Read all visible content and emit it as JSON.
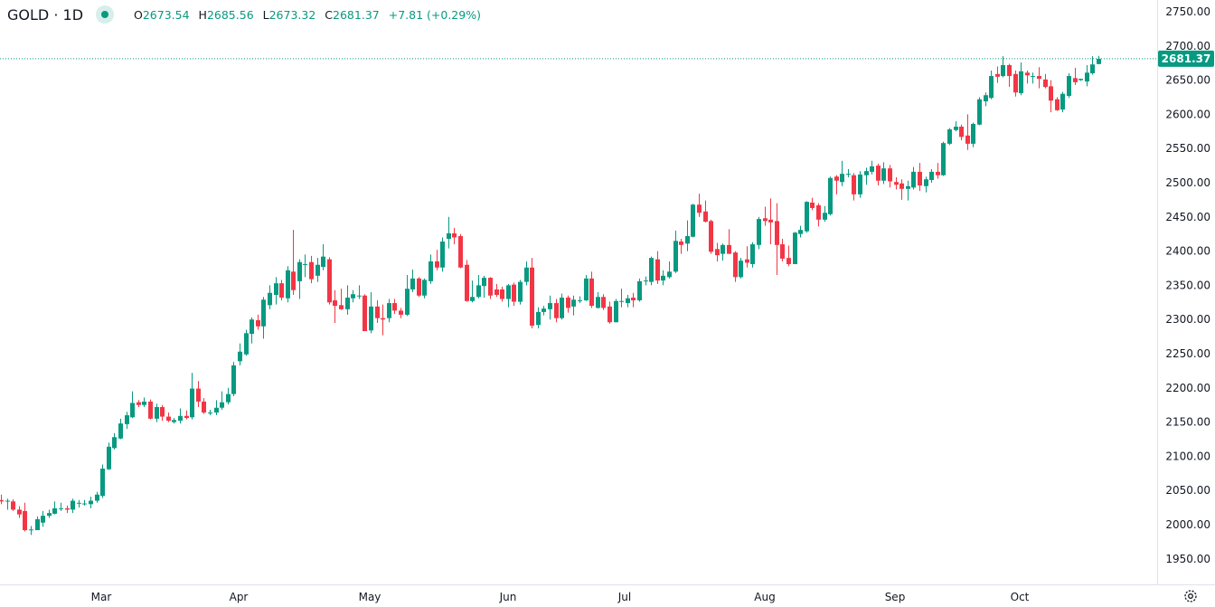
{
  "header": {
    "symbol": "GOLD",
    "separator": "·",
    "interval": "1D",
    "open_label": "O",
    "open": "2673.54",
    "high_label": "H",
    "high": "2685.56",
    "low_label": "L",
    "low": "2673.32",
    "close_label": "C",
    "close": "2681.37",
    "change": "+7.81",
    "change_pct": "(+0.29%)"
  },
  "colors": {
    "up": "#089981",
    "down": "#f23645",
    "text": "#131722",
    "grid": "#e0e3eb"
  },
  "icons": {
    "status": "market-open-dot-icon",
    "settings": "gear-icon"
  },
  "chart_data": {
    "type": "candlestick",
    "title": "GOLD · 1D",
    "ylim": [
      1920,
      2765
    ],
    "y_ticks": [
      "2750.00",
      "2700.00",
      "2650.00",
      "2600.00",
      "2550.00",
      "2500.00",
      "2450.00",
      "2400.00",
      "2350.00",
      "2300.00",
      "2250.00",
      "2200.00",
      "2150.00",
      "2100.00",
      "2050.00",
      "2000.00",
      "1950.00"
    ],
    "x_ticks": [
      "Mar",
      "Apr",
      "May",
      "Jun",
      "Jul",
      "Aug",
      "Sep",
      "Oct"
    ],
    "last_price": "2681.37",
    "grid": false,
    "ohlc": [
      [
        2036,
        2044,
        2030,
        2034
      ],
      [
        2034,
        2038,
        2022,
        2035
      ],
      [
        2034,
        2037,
        2020,
        2022
      ],
      [
        2022,
        2027,
        2010,
        2015
      ],
      [
        2020,
        2032,
        1990,
        1992
      ],
      [
        1993,
        1998,
        1985,
        1993
      ],
      [
        1992,
        2012,
        1992,
        2008
      ],
      [
        2003,
        2020,
        1997,
        2013
      ],
      [
        2013,
        2022,
        2010,
        2017
      ],
      [
        2016,
        2034,
        2015,
        2024
      ],
      [
        2023,
        2032,
        2020,
        2024
      ],
      [
        2024,
        2028,
        2017,
        2022
      ],
      [
        2022,
        2038,
        2017,
        2035
      ],
      [
        2031,
        2036,
        2025,
        2032
      ],
      [
        2031,
        2036,
        2028,
        2031
      ],
      [
        2030,
        2041,
        2024,
        2035
      ],
      [
        2035,
        2048,
        2032,
        2044
      ],
      [
        2042,
        2088,
        2039,
        2082
      ],
      [
        2081,
        2120,
        2080,
        2114
      ],
      [
        2112,
        2134,
        2110,
        2128
      ],
      [
        2126,
        2155,
        2125,
        2148
      ],
      [
        2147,
        2165,
        2140,
        2160
      ],
      [
        2157,
        2195,
        2156,
        2178
      ],
      [
        2179,
        2182,
        2172,
        2175
      ],
      [
        2175,
        2186,
        2172,
        2180
      ],
      [
        2180,
        2183,
        2154,
        2155
      ],
      [
        2155,
        2177,
        2150,
        2172
      ],
      [
        2172,
        2175,
        2152,
        2158
      ],
      [
        2158,
        2164,
        2150,
        2152
      ],
      [
        2150,
        2156,
        2148,
        2153
      ],
      [
        2152,
        2170,
        2148,
        2159
      ],
      [
        2159,
        2167,
        2154,
        2156
      ],
      [
        2157,
        2222,
        2154,
        2199
      ],
      [
        2199,
        2210,
        2172,
        2180
      ],
      [
        2180,
        2185,
        2162,
        2164
      ],
      [
        2164,
        2168,
        2160,
        2164
      ],
      [
        2164,
        2182,
        2160,
        2171
      ],
      [
        2171,
        2195,
        2168,
        2179
      ],
      [
        2179,
        2200,
        2176,
        2191
      ],
      [
        2191,
        2238,
        2188,
        2233
      ],
      [
        2239,
        2265,
        2233,
        2253
      ],
      [
        2249,
        2285,
        2247,
        2280
      ],
      [
        2279,
        2303,
        2265,
        2300
      ],
      [
        2299,
        2307,
        2285,
        2290
      ],
      [
        2290,
        2333,
        2272,
        2329
      ],
      [
        2321,
        2350,
        2315,
        2339
      ],
      [
        2336,
        2362,
        2322,
        2353
      ],
      [
        2353,
        2358,
        2328,
        2332
      ],
      [
        2331,
        2378,
        2325,
        2372
      ],
      [
        2370,
        2431,
        2336,
        2343
      ],
      [
        2356,
        2388,
        2330,
        2384
      ],
      [
        2381,
        2395,
        2362,
        2381
      ],
      [
        2384,
        2393,
        2353,
        2359
      ],
      [
        2364,
        2390,
        2355,
        2380
      ],
      [
        2377,
        2410,
        2372,
        2392
      ],
      [
        2388,
        2391,
        2322,
        2325
      ],
      [
        2328,
        2343,
        2295,
        2320
      ],
      [
        2321,
        2345,
        2314,
        2315
      ],
      [
        2315,
        2350,
        2307,
        2332
      ],
      [
        2331,
        2343,
        2325,
        2337
      ],
      [
        2335,
        2350,
        2330,
        2335
      ],
      [
        2335,
        2337,
        2283,
        2283
      ],
      [
        2284,
        2340,
        2280,
        2319
      ],
      [
        2319,
        2328,
        2295,
        2302
      ],
      [
        2302,
        2322,
        2277,
        2300
      ],
      [
        2302,
        2330,
        2296,
        2324
      ],
      [
        2324,
        2330,
        2308,
        2313
      ],
      [
        2313,
        2317,
        2302,
        2307
      ],
      [
        2307,
        2365,
        2305,
        2345
      ],
      [
        2344,
        2373,
        2340,
        2360
      ],
      [
        2360,
        2362,
        2333,
        2335
      ],
      [
        2335,
        2360,
        2331,
        2358
      ],
      [
        2356,
        2395,
        2352,
        2385
      ],
      [
        2385,
        2402,
        2372,
        2376
      ],
      [
        2376,
        2420,
        2370,
        2414
      ],
      [
        2418,
        2450,
        2404,
        2426
      ],
      [
        2426,
        2434,
        2410,
        2420
      ],
      [
        2422,
        2425,
        2375,
        2376
      ],
      [
        2380,
        2387,
        2326,
        2327
      ],
      [
        2327,
        2357,
        2325,
        2333
      ],
      [
        2333,
        2365,
        2331,
        2350
      ],
      [
        2349,
        2364,
        2332,
        2361
      ],
      [
        2361,
        2362,
        2330,
        2335
      ],
      [
        2344,
        2352,
        2333,
        2336
      ],
      [
        2344,
        2348,
        2326,
        2330
      ],
      [
        2330,
        2352,
        2318,
        2350
      ],
      [
        2351,
        2354,
        2320,
        2326
      ],
      [
        2326,
        2358,
        2322,
        2355
      ],
      [
        2355,
        2385,
        2350,
        2376
      ],
      [
        2376,
        2390,
        2287,
        2291
      ],
      [
        2292,
        2318,
        2287,
        2311
      ],
      [
        2311,
        2320,
        2306,
        2316
      ],
      [
        2315,
        2335,
        2300,
        2324
      ],
      [
        2324,
        2330,
        2296,
        2302
      ],
      [
        2302,
        2338,
        2300,
        2332
      ],
      [
        2332,
        2335,
        2310,
        2317
      ],
      [
        2319,
        2335,
        2306,
        2329
      ],
      [
        2328,
        2334,
        2324,
        2328
      ],
      [
        2328,
        2365,
        2327,
        2360
      ],
      [
        2360,
        2370,
        2317,
        2320
      ],
      [
        2317,
        2340,
        2316,
        2333
      ],
      [
        2333,
        2337,
        2314,
        2317
      ],
      [
        2319,
        2326,
        2294,
        2296
      ],
      [
        2296,
        2330,
        2296,
        2327
      ],
      [
        2327,
        2345,
        2318,
        2327
      ],
      [
        2324,
        2336,
        2318,
        2331
      ],
      [
        2332,
        2339,
        2318,
        2328
      ],
      [
        2328,
        2360,
        2326,
        2356
      ],
      [
        2357,
        2363,
        2350,
        2357
      ],
      [
        2355,
        2392,
        2350,
        2390
      ],
      [
        2388,
        2400,
        2352,
        2357
      ],
      [
        2357,
        2372,
        2350,
        2364
      ],
      [
        2362,
        2385,
        2360,
        2370
      ],
      [
        2370,
        2430,
        2368,
        2415
      ],
      [
        2414,
        2418,
        2396,
        2409
      ],
      [
        2411,
        2445,
        2400,
        2422
      ],
      [
        2421,
        2469,
        2420,
        2468
      ],
      [
        2468,
        2484,
        2450,
        2456
      ],
      [
        2458,
        2474,
        2442,
        2443
      ],
      [
        2444,
        2446,
        2396,
        2399
      ],
      [
        2403,
        2412,
        2385,
        2394
      ],
      [
        2396,
        2411,
        2386,
        2409
      ],
      [
        2409,
        2432,
        2396,
        2396
      ],
      [
        2398,
        2400,
        2355,
        2362
      ],
      [
        2362,
        2390,
        2360,
        2386
      ],
      [
        2388,
        2407,
        2376,
        2383
      ],
      [
        2381,
        2413,
        2376,
        2410
      ],
      [
        2409,
        2450,
        2403,
        2447
      ],
      [
        2448,
        2465,
        2437,
        2444
      ],
      [
        2446,
        2477,
        2410,
        2442
      ],
      [
        2444,
        2470,
        2365,
        2409
      ],
      [
        2410,
        2418,
        2385,
        2389
      ],
      [
        2390,
        2408,
        2378,
        2381
      ],
      [
        2381,
        2428,
        2381,
        2427
      ],
      [
        2425,
        2437,
        2420,
        2431
      ],
      [
        2429,
        2473,
        2427,
        2472
      ],
      [
        2471,
        2478,
        2460,
        2463
      ],
      [
        2467,
        2470,
        2436,
        2446
      ],
      [
        2446,
        2466,
        2443,
        2456
      ],
      [
        2454,
        2509,
        2452,
        2507
      ],
      [
        2509,
        2511,
        2483,
        2503
      ],
      [
        2501,
        2532,
        2495,
        2513
      ],
      [
        2513,
        2520,
        2508,
        2513
      ],
      [
        2511,
        2514,
        2474,
        2483
      ],
      [
        2483,
        2517,
        2478,
        2512
      ],
      [
        2511,
        2522,
        2497,
        2517
      ],
      [
        2516,
        2532,
        2512,
        2524
      ],
      [
        2525,
        2528,
        2496,
        2503
      ],
      [
        2503,
        2530,
        2498,
        2521
      ],
      [
        2521,
        2526,
        2493,
        2502
      ],
      [
        2501,
        2508,
        2490,
        2497
      ],
      [
        2499,
        2505,
        2475,
        2491
      ],
      [
        2491,
        2503,
        2474,
        2495
      ],
      [
        2493,
        2523,
        2490,
        2516
      ],
      [
        2516,
        2529,
        2488,
        2496
      ],
      [
        2495,
        2509,
        2486,
        2505
      ],
      [
        2504,
        2520,
        2500,
        2516
      ],
      [
        2516,
        2529,
        2506,
        2511
      ],
      [
        2511,
        2560,
        2510,
        2558
      ],
      [
        2557,
        2580,
        2555,
        2578
      ],
      [
        2577,
        2590,
        2575,
        2582
      ],
      [
        2582,
        2585,
        2562,
        2567
      ],
      [
        2569,
        2600,
        2548,
        2557
      ],
      [
        2557,
        2588,
        2552,
        2586
      ],
      [
        2585,
        2625,
        2584,
        2622
      ],
      [
        2619,
        2632,
        2612,
        2628
      ],
      [
        2624,
        2664,
        2622,
        2656
      ],
      [
        2659,
        2670,
        2646,
        2655
      ],
      [
        2656,
        2685,
        2654,
        2672
      ],
      [
        2672,
        2674,
        2640,
        2656
      ],
      [
        2659,
        2664,
        2626,
        2632
      ],
      [
        2631,
        2676,
        2628,
        2663
      ],
      [
        2661,
        2664,
        2645,
        2657
      ],
      [
        2656,
        2661,
        2645,
        2656
      ],
      [
        2656,
        2669,
        2638,
        2652
      ],
      [
        2651,
        2659,
        2638,
        2640
      ],
      [
        2641,
        2650,
        2603,
        2620
      ],
      [
        2622,
        2625,
        2605,
        2606
      ],
      [
        2607,
        2633,
        2603,
        2630
      ],
      [
        2627,
        2660,
        2624,
        2656
      ],
      [
        2653,
        2668,
        2643,
        2647
      ],
      [
        2650,
        2652,
        2649,
        2652
      ],
      [
        2648,
        2672,
        2641,
        2661
      ],
      [
        2660,
        2685,
        2658,
        2673
      ],
      [
        2673.54,
        2685.56,
        2673.32,
        2681.37
      ]
    ]
  }
}
